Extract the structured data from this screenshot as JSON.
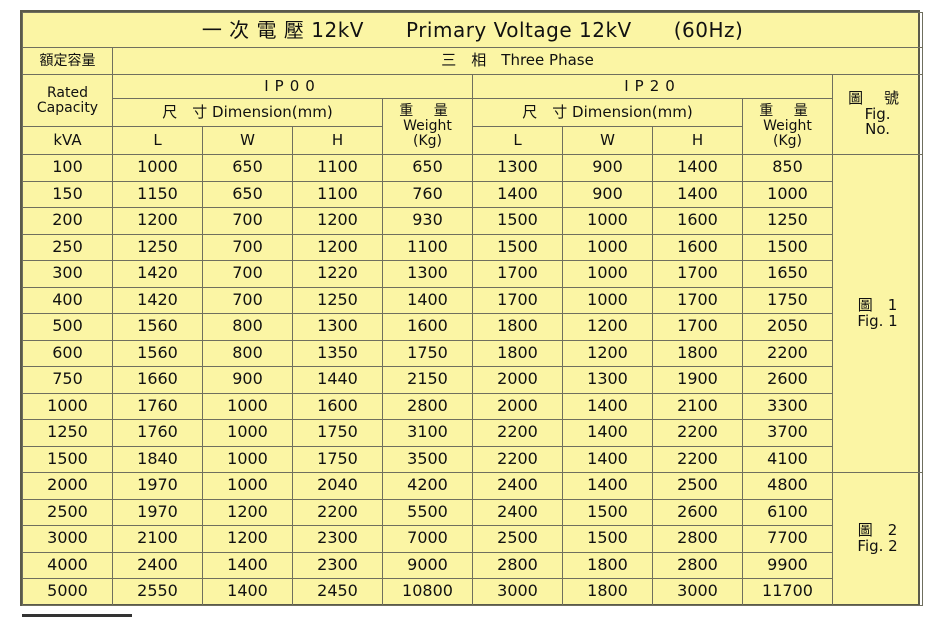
{
  "title": {
    "zh": "一 次 電 壓 12kV",
    "en": "Primary Voltage 12kV",
    "freq": "(60Hz)"
  },
  "header": {
    "capacity_zh": "額定容量",
    "capacity_en_1": "Rated",
    "capacity_en_2": "Capacity",
    "unit": "kVA",
    "phase": "三　相　Three Phase",
    "ip00": "IP00",
    "ip20": "IP20",
    "dimension": "尺　寸 Dimension(mm)",
    "L": "L",
    "W": "W",
    "H": "H",
    "weight_zh": "重 量",
    "weight_en": "Weight",
    "weight_unit": "(Kg)",
    "fig_zh": "圖 號",
    "fig_en_1": "Fig.",
    "fig_en_2": "No."
  },
  "rows": [
    {
      "kva": "100",
      "ip00": [
        "1000",
        "650",
        "1100",
        "650"
      ],
      "ip20": [
        "1300",
        "900",
        "1400",
        "850"
      ]
    },
    {
      "kva": "150",
      "ip00": [
        "1150",
        "650",
        "1100",
        "760"
      ],
      "ip20": [
        "1400",
        "900",
        "1400",
        "1000"
      ]
    },
    {
      "kva": "200",
      "ip00": [
        "1200",
        "700",
        "1200",
        "930"
      ],
      "ip20": [
        "1500",
        "1000",
        "1600",
        "1250"
      ]
    },
    {
      "kva": "250",
      "ip00": [
        "1250",
        "700",
        "1200",
        "1100"
      ],
      "ip20": [
        "1500",
        "1000",
        "1600",
        "1500"
      ]
    },
    {
      "kva": "300",
      "ip00": [
        "1420",
        "700",
        "1220",
        "1300"
      ],
      "ip20": [
        "1700",
        "1000",
        "1700",
        "1650"
      ]
    },
    {
      "kva": "400",
      "ip00": [
        "1420",
        "700",
        "1250",
        "1400"
      ],
      "ip20": [
        "1700",
        "1000",
        "1700",
        "1750"
      ]
    },
    {
      "kva": "500",
      "ip00": [
        "1560",
        "800",
        "1300",
        "1600"
      ],
      "ip20": [
        "1800",
        "1200",
        "1700",
        "2050"
      ]
    },
    {
      "kva": "600",
      "ip00": [
        "1560",
        "800",
        "1350",
        "1750"
      ],
      "ip20": [
        "1800",
        "1200",
        "1800",
        "2200"
      ]
    },
    {
      "kva": "750",
      "ip00": [
        "1660",
        "900",
        "1440",
        "2150"
      ],
      "ip20": [
        "2000",
        "1300",
        "1900",
        "2600"
      ]
    },
    {
      "kva": "1000",
      "ip00": [
        "1760",
        "1000",
        "1600",
        "2800"
      ],
      "ip20": [
        "2000",
        "1400",
        "2100",
        "3300"
      ]
    },
    {
      "kva": "1250",
      "ip00": [
        "1760",
        "1000",
        "1750",
        "3100"
      ],
      "ip20": [
        "2200",
        "1400",
        "2200",
        "3700"
      ]
    },
    {
      "kva": "1500",
      "ip00": [
        "1840",
        "1000",
        "1750",
        "3500"
      ],
      "ip20": [
        "2200",
        "1400",
        "2200",
        "4100"
      ]
    },
    {
      "kva": "2000",
      "ip00": [
        "1970",
        "1000",
        "2040",
        "4200"
      ],
      "ip20": [
        "2400",
        "1400",
        "2500",
        "4800"
      ]
    },
    {
      "kva": "2500",
      "ip00": [
        "1970",
        "1200",
        "2200",
        "5500"
      ],
      "ip20": [
        "2400",
        "1500",
        "2600",
        "6100"
      ]
    },
    {
      "kva": "3000",
      "ip00": [
        "2100",
        "1200",
        "2300",
        "7000"
      ],
      "ip20": [
        "2500",
        "1500",
        "2800",
        "7700"
      ]
    },
    {
      "kva": "4000",
      "ip00": [
        "2400",
        "1400",
        "2300",
        "9000"
      ],
      "ip20": [
        "2800",
        "1800",
        "2800",
        "9900"
      ]
    },
    {
      "kva": "5000",
      "ip00": [
        "2550",
        "1400",
        "2450",
        "10800"
      ],
      "ip20": [
        "3000",
        "1800",
        "3000",
        "11700"
      ]
    }
  ],
  "figures": [
    {
      "zh": "圖　1",
      "en": "Fig. 1",
      "rows": 12
    },
    {
      "zh": "圖　2",
      "en": "Fig. 2",
      "rows": 5
    }
  ]
}
